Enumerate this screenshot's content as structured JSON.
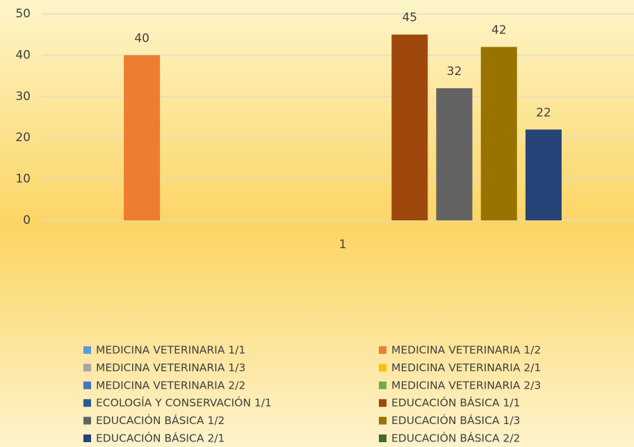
{
  "chart_data": {
    "type": "bar",
    "categories": [
      "1"
    ],
    "series": [
      {
        "name": "MEDICINA VETERINARIA 1/1",
        "color": "#5b9bd5",
        "values": [
          null
        ]
      },
      {
        "name": "MEDICINA VETERINARIA 1/2",
        "color": "#ed7d31",
        "values": [
          40
        ]
      },
      {
        "name": "MEDICINA VETERINARIA 1/3",
        "color": "#a5a5a5",
        "values": [
          null
        ]
      },
      {
        "name": "MEDICINA VETERINARIA 2/1",
        "color": "#ffc000",
        "values": [
          null
        ]
      },
      {
        "name": "MEDICINA VETERINARIA 2/2",
        "color": "#4472c4",
        "values": [
          null
        ]
      },
      {
        "name": "MEDICINA VETERINARIA 2/3",
        "color": "#70ad47",
        "values": [
          null
        ]
      },
      {
        "name": "ECOLOGÍA Y CONSERVACIÓN 1/1",
        "color": "#255e91",
        "values": [
          null
        ]
      },
      {
        "name": "EDUCACIÓN BÁSICA 1/1",
        "color": "#9e480e",
        "values": [
          45
        ]
      },
      {
        "name": "EDUCACIÓN BÁSICA 1/2",
        "color": "#636363",
        "values": [
          32
        ]
      },
      {
        "name": "EDUCACIÓN BÁSICA 1/3",
        "color": "#997300",
        "values": [
          42
        ]
      },
      {
        "name": "EDUCACIÓN BÁSICA 2/1",
        "color": "#264478",
        "values": [
          22
        ]
      },
      {
        "name": "EDUCACIÓN BÁSICA 2/2",
        "color": "#43682b",
        "values": [
          null
        ]
      }
    ],
    "ylim": [
      0,
      50
    ],
    "yticks": [
      0,
      10,
      20,
      30,
      40,
      50
    ],
    "grid": true,
    "legend": "bottom"
  }
}
